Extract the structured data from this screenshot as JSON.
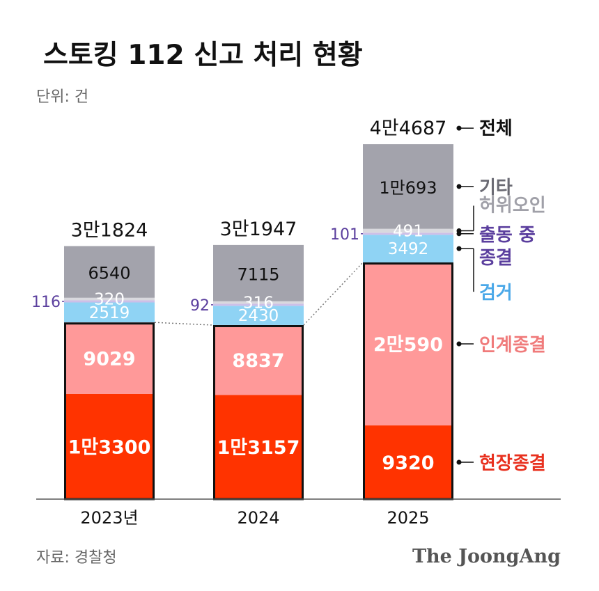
{
  "header": {
    "title": "스토킹 112 신고 처리 현황",
    "unit": "단위: 건"
  },
  "footer": {
    "source": "자료: 경찰청",
    "brand": "The JoongAng"
  },
  "colors": {
    "현장종결": "#ff3300",
    "인계종결": "#ff9999",
    "검거": "#8fd3f4",
    "출동 중 종결": "#cdbfe8",
    "허위오인": "#d9d9de",
    "기타": "#a3a3ac",
    "label_blue": "#4aa8e8",
    "label_purple": "#5b3f9e",
    "label_gray": "#a0a0a8",
    "label_red": "#e8301e",
    "label_pink": "#f07b7b"
  },
  "chart_data": {
    "type": "bar",
    "stacked": true,
    "categories": [
      "2023년",
      "2024",
      "2025"
    ],
    "series": [
      {
        "name": "현장종결",
        "values": [
          13300,
          13157,
          9320
        ],
        "labels": [
          "1만3300",
          "1만3157",
          "9320"
        ]
      },
      {
        "name": "인계종결",
        "values": [
          9029,
          8837,
          20590
        ],
        "labels": [
          "9029",
          "8837",
          "2만590"
        ]
      },
      {
        "name": "검거",
        "values": [
          2519,
          2430,
          3492
        ],
        "labels": [
          "2519",
          "2430",
          "3492"
        ]
      },
      {
        "name": "출동 중 종결",
        "values": [
          116,
          92,
          101
        ],
        "labels": [
          "116",
          "92",
          "101"
        ]
      },
      {
        "name": "허위오인",
        "values": [
          320,
          316,
          491
        ],
        "labels": [
          "320",
          "316",
          "491"
        ]
      },
      {
        "name": "기타",
        "values": [
          6540,
          7115,
          10693
        ],
        "labels": [
          "6540",
          "7115",
          "1만693"
        ]
      }
    ],
    "totals": {
      "values": [
        31824,
        31947,
        44687
      ],
      "labels": [
        "3만1824",
        "3만1947",
        "4만4687"
      ]
    },
    "total_label": "전체",
    "ylim": [
      0,
      44687
    ],
    "grid": false,
    "legend": "right, aligned with 2025 bar"
  }
}
